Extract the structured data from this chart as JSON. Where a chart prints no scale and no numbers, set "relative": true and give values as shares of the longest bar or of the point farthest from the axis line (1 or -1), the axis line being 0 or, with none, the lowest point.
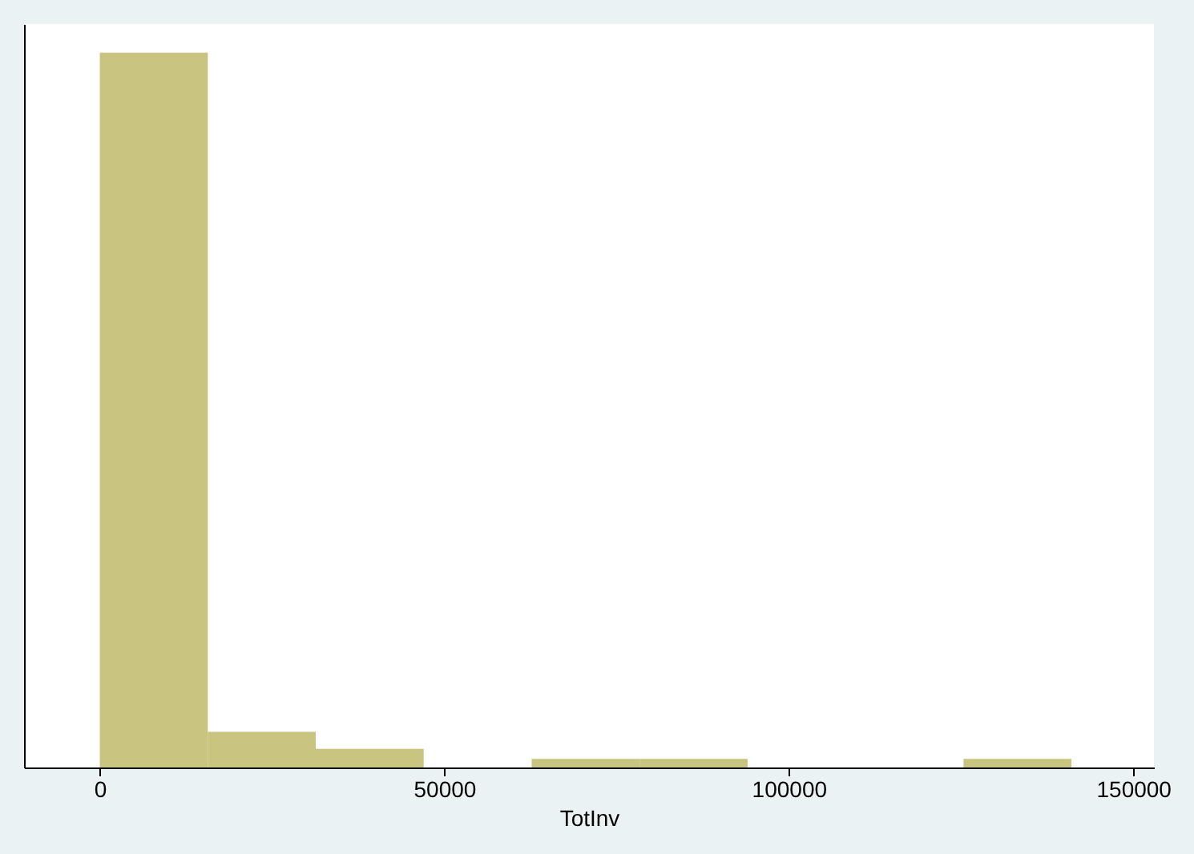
{
  "chart_data": {
    "type": "bar",
    "relative": true,
    "xlabel": "TotInv",
    "x": [
      7835,
      23505,
      39175,
      54845,
      70515,
      86185,
      101855,
      117525,
      133195
    ],
    "values": [
      1,
      0.05,
      0.026,
      0,
      0.012,
      0.012,
      0,
      0,
      0.012
    ],
    "color": "#c9c47f",
    "xlim": [
      -11000,
      153000
    ],
    "xticks": [
      0,
      50000,
      100000,
      150000
    ]
  }
}
